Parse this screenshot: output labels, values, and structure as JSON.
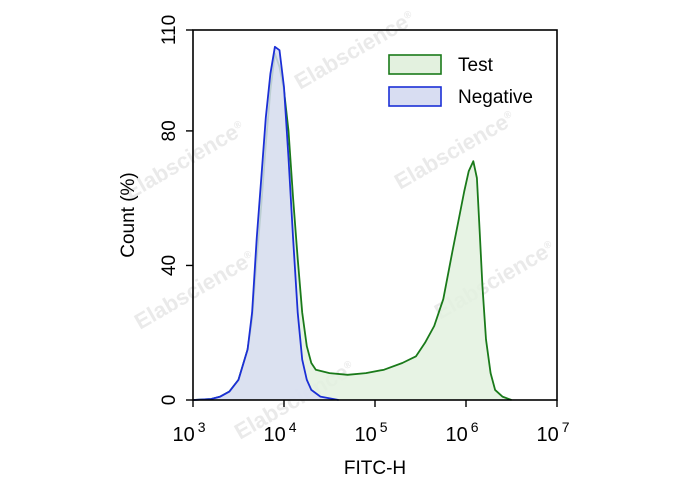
{
  "chart_data": {
    "type": "area",
    "title": "",
    "xlabel": "FITC-H",
    "ylabel": "Count  (%)",
    "xscale": "log",
    "xlim": [
      1000,
      10000000
    ],
    "ylim": [
      0,
      110
    ],
    "yticks": [
      "0",
      "40",
      "80",
      "110"
    ],
    "yticks_values": [
      0,
      40,
      80,
      110
    ],
    "xticks": [
      {
        "base": "10",
        "exp": "3",
        "value": 1000
      },
      {
        "base": "10",
        "exp": "4",
        "value": 10000
      },
      {
        "base": "10",
        "exp": "5",
        "value": 100000
      },
      {
        "base": "10",
        "exp": "6",
        "value": 1000000
      },
      {
        "base": "10",
        "exp": "7",
        "value": 10000000
      }
    ],
    "legend_position": "top-right",
    "series": [
      {
        "name": "Test",
        "line_color": "#1a7a1a",
        "fill_color": "#e3f1df",
        "points": [
          [
            3.0,
            0
          ],
          [
            3.2,
            0.3
          ],
          [
            3.3,
            1
          ],
          [
            3.4,
            2.5
          ],
          [
            3.5,
            6
          ],
          [
            3.6,
            15
          ],
          [
            3.65,
            24
          ],
          [
            3.7,
            42
          ],
          [
            3.75,
            58
          ],
          [
            3.8,
            76
          ],
          [
            3.85,
            92
          ],
          [
            3.9,
            103
          ],
          [
            3.95,
            99
          ],
          [
            4.0,
            92
          ],
          [
            4.05,
            80
          ],
          [
            4.1,
            60
          ],
          [
            4.15,
            42
          ],
          [
            4.2,
            26
          ],
          [
            4.25,
            16
          ],
          [
            4.3,
            11
          ],
          [
            4.35,
            9
          ],
          [
            4.5,
            8
          ],
          [
            4.7,
            7.5
          ],
          [
            4.9,
            8
          ],
          [
            5.1,
            9
          ],
          [
            5.3,
            11
          ],
          [
            5.45,
            13
          ],
          [
            5.55,
            17
          ],
          [
            5.65,
            22
          ],
          [
            5.75,
            30
          ],
          [
            5.85,
            44
          ],
          [
            5.93,
            55
          ],
          [
            5.98,
            62
          ],
          [
            6.03,
            68
          ],
          [
            6.08,
            71
          ],
          [
            6.12,
            66
          ],
          [
            6.15,
            50
          ],
          [
            6.18,
            34
          ],
          [
            6.22,
            18
          ],
          [
            6.27,
            8
          ],
          [
            6.32,
            3
          ],
          [
            6.4,
            1
          ],
          [
            6.5,
            0
          ]
        ]
      },
      {
        "name": "Negative",
        "line_color": "#1b2fd6",
        "fill_color": "#d8ddf2",
        "points": [
          [
            3.0,
            0
          ],
          [
            3.2,
            0.3
          ],
          [
            3.3,
            1
          ],
          [
            3.4,
            2.5
          ],
          [
            3.5,
            6
          ],
          [
            3.6,
            15
          ],
          [
            3.65,
            26
          ],
          [
            3.7,
            48
          ],
          [
            3.75,
            66
          ],
          [
            3.8,
            84
          ],
          [
            3.85,
            97
          ],
          [
            3.9,
            105
          ],
          [
            3.95,
            104
          ],
          [
            4.0,
            93
          ],
          [
            4.05,
            72
          ],
          [
            4.1,
            48
          ],
          [
            4.15,
            26
          ],
          [
            4.2,
            12
          ],
          [
            4.25,
            6
          ],
          [
            4.3,
            3
          ],
          [
            4.4,
            1
          ],
          [
            4.6,
            0
          ]
        ]
      }
    ]
  },
  "watermark": {
    "text": "Elabscience",
    "registered_mark": "®"
  }
}
